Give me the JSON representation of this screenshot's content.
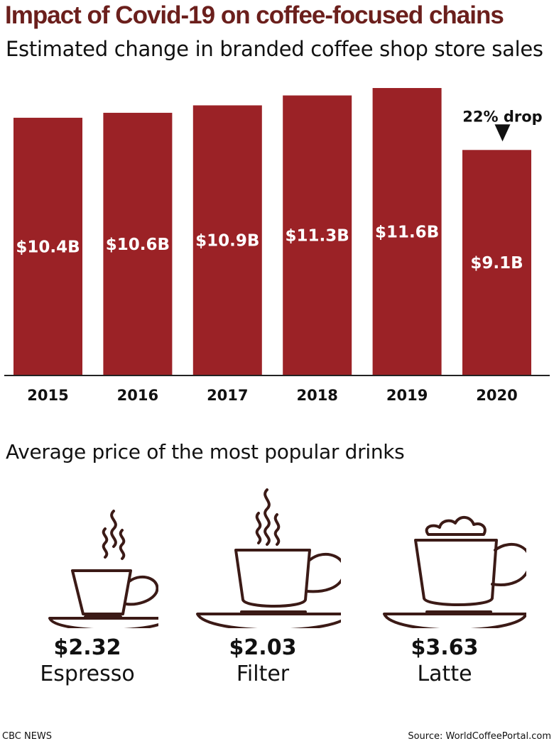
{
  "title": "Impact of Covid-19 on coffee-focused chains",
  "subtitle": "Estimated change in branded coffee shop store sales",
  "chart_data": {
    "type": "bar",
    "categories": [
      "2015",
      "2016",
      "2017",
      "2018",
      "2019",
      "2020"
    ],
    "values": [
      10.4,
      10.6,
      10.9,
      11.3,
      11.6,
      9.1
    ],
    "value_labels": [
      "$10.4B",
      "$10.6B",
      "$10.9B",
      "$11.3B",
      "$11.6B",
      "$9.1B"
    ],
    "unit": "billion USD",
    "annotation": {
      "category": "2020",
      "text": "22% drop"
    },
    "bar_color": "#9b2226",
    "ylim": [
      0,
      11.6
    ],
    "grid": false
  },
  "drinks": {
    "title": "Average price of the most popular drinks",
    "items": [
      {
        "icon": "espresso-cup-icon",
        "price": "$2.32",
        "name": "Espresso"
      },
      {
        "icon": "filter-coffee-cup-icon",
        "price": "$2.03",
        "name": "Filter"
      },
      {
        "icon": "latte-cup-icon",
        "price": "$3.63",
        "name": "Latte"
      }
    ],
    "icon_color": "#3b1a16"
  },
  "footer": {
    "left": "CBC NEWS",
    "right": "Source: WorldCoffeePortal.com"
  }
}
